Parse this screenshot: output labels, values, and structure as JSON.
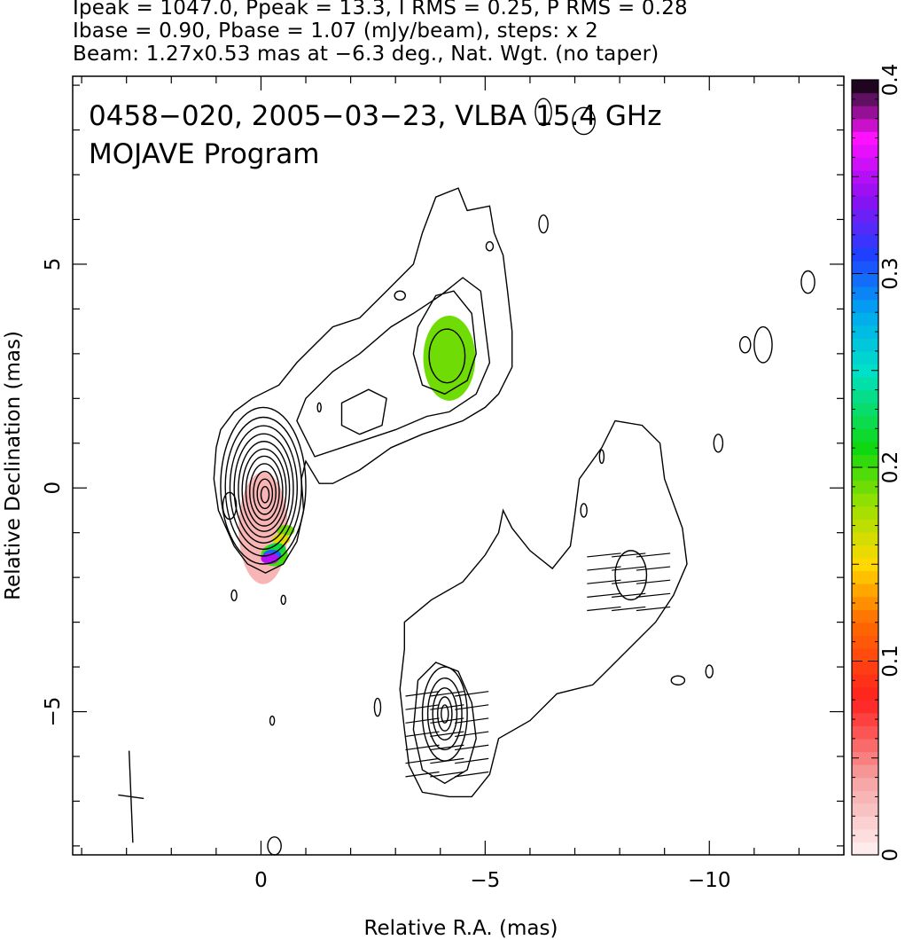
{
  "header": {
    "line1": "Ipeak = 1047.0, Ppeak = 13.3, I RMS = 0.25, P RMS = 0.28",
    "line2": "Ibase = 0.90, Pbase = 1.07 (mJy/beam), steps: x 2",
    "line3": "Beam: 1.27x0.53 mas at −6.3 deg., Nat. Wgt. (no taper)"
  },
  "chart_data": {
    "type": "heatmap",
    "subtype": "radio contour map with polarization overlay",
    "caption_line1": "0458−020, 2005−03−23, VLBA 15.4 GHz",
    "caption_line2": "MOJAVE Program",
    "xlabel": "Relative R.A. (mas)",
    "ylabel": "Relative Declination (mas)",
    "xlim": [
      4.2,
      -13.0
    ],
    "ylim": [
      -8.2,
      9.2
    ],
    "x_ticks": [
      {
        "v": 0,
        "label": "0"
      },
      {
        "v": -5,
        "label": "−5"
      },
      {
        "v": -10,
        "label": "−10"
      }
    ],
    "y_ticks": [
      {
        "v": 5,
        "label": "5"
      },
      {
        "v": 0,
        "label": "0"
      },
      {
        "v": -5,
        "label": "−5"
      }
    ],
    "colorbar": {
      "min": 0,
      "max": 0.4,
      "ticks": [
        {
          "v": 0,
          "label": "0"
        },
        {
          "v": 0.1,
          "label": "0.1"
        },
        {
          "v": 0.2,
          "label": "0.2"
        },
        {
          "v": 0.3,
          "label": "0.3"
        },
        {
          "v": 0.4,
          "label": "0.4"
        }
      ],
      "stops": [
        {
          "v": 0.0,
          "color": "#fff2f2"
        },
        {
          "v": 0.04,
          "color": "#f5a0a0"
        },
        {
          "v": 0.08,
          "color": "#ff2020"
        },
        {
          "v": 0.12,
          "color": "#ff6a00"
        },
        {
          "v": 0.15,
          "color": "#ffd800"
        },
        {
          "v": 0.18,
          "color": "#9ee000"
        },
        {
          "v": 0.21,
          "color": "#10d810"
        },
        {
          "v": 0.25,
          "color": "#00e0c8"
        },
        {
          "v": 0.28,
          "color": "#00a8f0"
        },
        {
          "v": 0.31,
          "color": "#2040ff"
        },
        {
          "v": 0.34,
          "color": "#9010f0"
        },
        {
          "v": 0.37,
          "color": "#ff10ff"
        },
        {
          "v": 0.39,
          "color": "#601060"
        },
        {
          "v": 0.4,
          "color": "#000000"
        }
      ]
    },
    "core": {
      "x": 0.0,
      "y": 0.0
    },
    "contour_levels_mJy": [
      0.9,
      1.8,
      3.6,
      7.2,
      14.4,
      28.8,
      57.6,
      115.2,
      230.4,
      460.8,
      921.6
    ],
    "beam": {
      "major": 1.27,
      "minor": 0.53,
      "pa_deg": -6.3,
      "x": 2.9,
      "y": -6.9
    },
    "fractional_polarization_regions": [
      {
        "name": "core",
        "x": -0.05,
        "y": -0.9,
        "dx": 0.55,
        "dy": 1.25,
        "value": 0.03
      },
      {
        "name": "core-edge",
        "x": -0.3,
        "y": -1.5,
        "dx": 0.3,
        "dy": 0.25,
        "value": 0.2
      },
      {
        "name": "jet-knot",
        "x": -4.2,
        "y": 2.9,
        "dx": 0.58,
        "dy": 0.95,
        "value": 0.19
      }
    ],
    "evpa_groups": [
      {
        "x": -4.15,
        "y": -5.5,
        "rows": 7,
        "angle_deg": 8
      },
      {
        "x": -8.2,
        "y": -2.1,
        "rows": 5,
        "angle_deg": 6
      }
    ]
  }
}
